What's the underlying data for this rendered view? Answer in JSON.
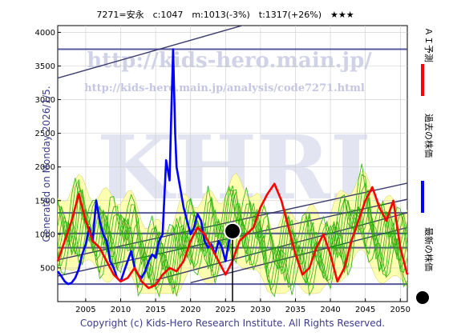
{
  "header": {
    "title": "7271=安永　c:1047　m:1013(-3%)　t:1317(+26%)　★★★"
  },
  "side_text": "Generated on Monday 2026/1/5.",
  "footer": "Copyright (c) Kids-Hero Research Institute. All Rights Reserved.",
  "watermark": {
    "big": "KHRI",
    "url": "http://kids-hero.main.jp/",
    "url2": "http://kids-hero.main.jp/analysis/code7271.html",
    "faint": "kids-hero"
  },
  "legend": [
    {
      "label": "ＡＩ予測",
      "color": "#ff0000",
      "marker": "line"
    },
    {
      "label": "過去の株価",
      "color": "#0000ff",
      "marker": "line"
    },
    {
      "label": "最新の株価",
      "color": "#000000",
      "marker": "dot"
    }
  ],
  "colors": {
    "band_fill": "#ffffb0",
    "forecast_green": "#22aa00",
    "history_blue": "#0000ff",
    "ai_red": "#ff0000",
    "levels": "#3b3b8c",
    "channels": "#3b3b6c"
  },
  "chart_data": {
    "type": "line",
    "xlim": [
      2001,
      2051
    ],
    "ylim": [
      0,
      4100
    ],
    "x_ticks": [
      2005,
      2010,
      2015,
      2020,
      2025,
      2030,
      2035,
      2040,
      2045,
      2050
    ],
    "y_ticks": [
      500,
      1000,
      1500,
      2000,
      2500,
      3000,
      3500,
      4000
    ],
    "grid": true,
    "latest_point": {
      "x": 2026.0,
      "y": 1047
    },
    "horizontal_levels": [
      3750,
      1317,
      1013,
      800,
      260
    ],
    "channel_lines": [
      {
        "x": [
          2001,
          2051
        ],
        "y": [
          3320,
          4800
        ]
      },
      {
        "x": [
          2001,
          2051
        ],
        "y": [
          620,
          1760
        ]
      },
      {
        "x": [
          2001,
          2051
        ],
        "y": [
          380,
          1520
        ]
      },
      {
        "x": [
          2015,
          2051
        ],
        "y": [
          320,
          1320
        ]
      },
      {
        "x": [
          2020,
          2051
        ],
        "y": [
          280,
          1100
        ]
      }
    ],
    "series": [
      {
        "name": "過去の株価",
        "x": [
          2001.0,
          2001.5,
          2002.0,
          2002.5,
          2003.0,
          2003.5,
          2004.0,
          2004.5,
          2005.0,
          2005.5,
          2006.0,
          2006.5,
          2007.0,
          2007.5,
          2008.0,
          2008.5,
          2009.0,
          2009.5,
          2010.0,
          2010.5,
          2011.0,
          2011.5,
          2012.0,
          2012.5,
          2013.0,
          2013.5,
          2014.0,
          2014.5,
          2015.0,
          2015.5,
          2016.0,
          2016.5,
          2017.0,
          2017.3,
          2017.5,
          2017.8,
          2018.0,
          2018.5,
          2019.0,
          2019.5,
          2020.0,
          2020.5,
          2021.0,
          2021.5,
          2022.0,
          2022.5,
          2023.0,
          2023.5,
          2024.0,
          2024.5,
          2025.0,
          2025.5,
          2026.0
        ],
        "y": [
          450,
          380,
          300,
          260,
          280,
          350,
          480,
          700,
          850,
          1100,
          900,
          1500,
          1200,
          1000,
          900,
          600,
          500,
          350,
          300,
          450,
          600,
          750,
          500,
          400,
          350,
          450,
          600,
          700,
          650,
          900,
          1000,
          2100,
          1800,
          3000,
          3750,
          2500,
          2000,
          1700,
          1400,
          1200,
          1000,
          1100,
          1300,
          1200,
          900,
          800,
          850,
          700,
          900,
          800,
          600,
          900,
          1047
        ]
      },
      {
        "name": "ＡＩ予測",
        "x": [
          2001.0,
          2002.0,
          2003.0,
          2004.0,
          2005.0,
          2006.0,
          2007.0,
          2008.0,
          2009.0,
          2010.0,
          2011.0,
          2012.0,
          2013.0,
          2014.0,
          2015.0,
          2016.0,
          2017.0,
          2018.0,
          2019.0,
          2020.0,
          2021.0,
          2022.0,
          2023.0,
          2024.0,
          2025.0,
          2026.0,
          2027.0,
          2028.0,
          2029.0,
          2030.0,
          2031.0,
          2032.0,
          2033.0,
          2034.0,
          2035.0,
          2036.0,
          2037.0,
          2038.0,
          2039.0,
          2040.0,
          2041.0,
          2042.0,
          2043.0,
          2044.0,
          2045.0,
          2046.0,
          2047.0,
          2048.0,
          2049.0,
          2050.0,
          2051.0
        ],
        "y": [
          600,
          900,
          1200,
          1600,
          1200,
          900,
          800,
          600,
          400,
          300,
          350,
          500,
          300,
          200,
          250,
          400,
          500,
          450,
          600,
          900,
          1100,
          1000,
          800,
          600,
          400,
          600,
          900,
          1000,
          1100,
          1400,
          1600,
          1750,
          1500,
          1100,
          700,
          400,
          500,
          800,
          1000,
          700,
          300,
          500,
          900,
          1200,
          1500,
          1700,
          1400,
          1200,
          1500,
          800,
          400
        ]
      }
    ]
  }
}
